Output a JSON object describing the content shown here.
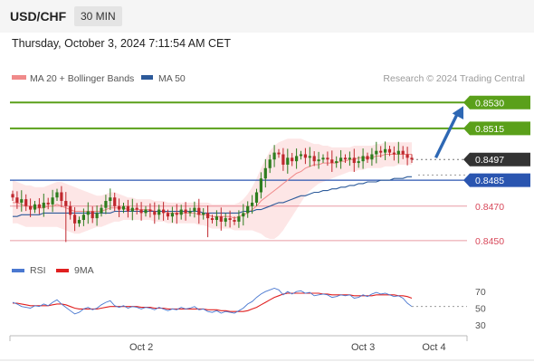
{
  "header": {
    "symbol": "USD/CHF",
    "timeframe": "30 MIN",
    "datetime": "Thursday, October 3, 2024 7:11:54 AM CET"
  },
  "legend": {
    "items": [
      {
        "label": "MA 20 + Bollinger Bands",
        "color": "#f08a8a"
      },
      {
        "label": "MA 50",
        "color": "#2c5a9a"
      }
    ],
    "credit": "Research © 2024 Trading Central"
  },
  "colors": {
    "resistance": "#5aa01a",
    "support": "#d8485a",
    "pivot": "#2a55b0",
    "current": "#333333",
    "bull": "#2e7d1e",
    "bear": "#c0282e",
    "band_fill": "#fde3e3",
    "ma20": "#f08a8a",
    "ma50": "#2c5a9a",
    "rsi": "#4a78d0",
    "rsi_ma": "#e02020",
    "arrow": "#2e68b4"
  },
  "chart_data": [
    {
      "type": "candlestick",
      "ylim": [
        0.844,
        0.8538
      ],
      "levels": [
        {
          "value": 0.853,
          "label": "0.8530",
          "kind": "resistance"
        },
        {
          "value": 0.8515,
          "label": "0.8515",
          "kind": "resistance"
        },
        {
          "value": 0.8497,
          "label": "0.8497",
          "kind": "current"
        },
        {
          "value": 0.8485,
          "label": "0.8485",
          "kind": "pivot"
        },
        {
          "value": 0.847,
          "label": "0.8470",
          "kind": "support"
        },
        {
          "value": 0.845,
          "label": "0.8450",
          "kind": "support"
        }
      ],
      "x_ticks": [
        {
          "label": "Oct 2",
          "index": 29
        },
        {
          "label": "Oct 3",
          "index": 79
        },
        {
          "label": "Oct 4",
          "index": 95
        }
      ],
      "arrow": {
        "from_index": 95,
        "from_value": 0.8497,
        "to_value": 0.853
      },
      "close": [
        0.8475,
        0.8472,
        0.8474,
        0.847,
        0.8468,
        0.8471,
        0.8469,
        0.8472,
        0.8471,
        0.8475,
        0.8478,
        0.8473,
        0.847,
        0.8465,
        0.846,
        0.8462,
        0.8465,
        0.8467,
        0.8463,
        0.8466,
        0.8469,
        0.8473,
        0.8475,
        0.847,
        0.8468,
        0.847,
        0.8467,
        0.8469,
        0.8468,
        0.8466,
        0.8468,
        0.8467,
        0.8465,
        0.8468,
        0.8466,
        0.8464,
        0.8466,
        0.8465,
        0.8468,
        0.8466,
        0.8467,
        0.8469,
        0.8465,
        0.8466,
        0.8463,
        0.8462,
        0.8464,
        0.8461,
        0.8463,
        0.8462,
        0.8461,
        0.8464,
        0.8466,
        0.847,
        0.8472,
        0.8478,
        0.8486,
        0.8492,
        0.8497,
        0.8501,
        0.85,
        0.8494,
        0.8498,
        0.8496,
        0.8499,
        0.85,
        0.8498,
        0.8499,
        0.8496,
        0.8497,
        0.8498,
        0.8497,
        0.8495,
        0.8496,
        0.8498,
        0.8497,
        0.8498,
        0.8495,
        0.8496,
        0.8499,
        0.8497,
        0.85,
        0.8502,
        0.8501,
        0.8503,
        0.8501,
        0.85,
        0.8502,
        0.85,
        0.8498,
        0.8497
      ],
      "bollinger_upper": [
        0.8485,
        0.8484,
        0.8483,
        0.8482,
        0.8482,
        0.8481,
        0.8481,
        0.8481,
        0.8482,
        0.8483,
        0.8484,
        0.8484,
        0.8483,
        0.8482,
        0.8481,
        0.848,
        0.8479,
        0.8478,
        0.8477,
        0.8476,
        0.8476,
        0.8477,
        0.8478,
        0.8478,
        0.8477,
        0.8476,
        0.8475,
        0.8475,
        0.8474,
        0.8474,
        0.8474,
        0.8474,
        0.8473,
        0.8473,
        0.8473,
        0.8472,
        0.8472,
        0.8472,
        0.8472,
        0.8472,
        0.8472,
        0.8472,
        0.8472,
        0.8472,
        0.8472,
        0.8471,
        0.8471,
        0.8471,
        0.8471,
        0.8471,
        0.8471,
        0.8472,
        0.8474,
        0.8477,
        0.8481,
        0.8486,
        0.8492,
        0.8497,
        0.8502,
        0.8505,
        0.8507,
        0.8508,
        0.8509,
        0.8509,
        0.8509,
        0.8509,
        0.8508,
        0.8507,
        0.8506,
        0.8506,
        0.8505,
        0.8505,
        0.8504,
        0.8504,
        0.8504,
        0.8504,
        0.8504,
        0.8505,
        0.8505,
        0.8505,
        0.8505,
        0.8505,
        0.8506,
        0.8506,
        0.8507,
        0.8507,
        0.8507,
        0.8507,
        0.8507,
        0.8507,
        0.8507
      ],
      "bollinger_lower": [
        0.846,
        0.846,
        0.8459,
        0.8458,
        0.8458,
        0.8458,
        0.8458,
        0.8458,
        0.8458,
        0.8458,
        0.8458,
        0.8457,
        0.8456,
        0.8455,
        0.8454,
        0.8454,
        0.8455,
        0.8456,
        0.8457,
        0.8458,
        0.8458,
        0.8459,
        0.846,
        0.8461,
        0.8461,
        0.8462,
        0.8462,
        0.8462,
        0.8462,
        0.8462,
        0.8462,
        0.8462,
        0.8461,
        0.8461,
        0.8461,
        0.846,
        0.846,
        0.846,
        0.846,
        0.846,
        0.846,
        0.846,
        0.8459,
        0.8459,
        0.8458,
        0.8457,
        0.8457,
        0.8457,
        0.8457,
        0.8457,
        0.8456,
        0.8456,
        0.8456,
        0.8456,
        0.8456,
        0.8455,
        0.8454,
        0.8452,
        0.8451,
        0.8451,
        0.8453,
        0.8456,
        0.846,
        0.8464,
        0.8468,
        0.8472,
        0.8476,
        0.8479,
        0.8481,
        0.8483,
        0.8484,
        0.8485,
        0.8486,
        0.8487,
        0.8488,
        0.8489,
        0.849,
        0.849,
        0.8491,
        0.8491,
        0.8492,
        0.8492,
        0.8492,
        0.8492,
        0.8493,
        0.8493,
        0.8493,
        0.8494,
        0.8494,
        0.8494,
        0.8494
      ],
      "ma20": [
        0.8472,
        0.8472,
        0.8471,
        0.847,
        0.847,
        0.8469,
        0.8469,
        0.8469,
        0.847,
        0.847,
        0.8471,
        0.847,
        0.8469,
        0.8468,
        0.8467,
        0.8467,
        0.8467,
        0.8467,
        0.8467,
        0.8467,
        0.8467,
        0.8468,
        0.8469,
        0.8469,
        0.8469,
        0.8469,
        0.8468,
        0.8468,
        0.8468,
        0.8468,
        0.8468,
        0.8468,
        0.8467,
        0.8467,
        0.8467,
        0.8466,
        0.8466,
        0.8466,
        0.8466,
        0.8466,
        0.8466,
        0.8466,
        0.8465,
        0.8465,
        0.8465,
        0.8464,
        0.8464,
        0.8464,
        0.8464,
        0.8464,
        0.8463,
        0.8464,
        0.8465,
        0.8466,
        0.8468,
        0.847,
        0.8473,
        0.8475,
        0.8477,
        0.8479,
        0.8481,
        0.8483,
        0.8485,
        0.8487,
        0.8489,
        0.849,
        0.8492,
        0.8493,
        0.8494,
        0.8494,
        0.8495,
        0.8495,
        0.8495,
        0.8495,
        0.8496,
        0.8496,
        0.8497,
        0.8497,
        0.8498,
        0.8498,
        0.8498,
        0.8498,
        0.8499,
        0.8499,
        0.85,
        0.85,
        0.85,
        0.85,
        0.85,
        0.85,
        0.85
      ],
      "ma50": [
        0.8464,
        0.8464,
        0.8465,
        0.8465,
        0.8465,
        0.8465,
        0.8465,
        0.8466,
        0.8466,
        0.8466,
        0.8466,
        0.8466,
        0.8466,
        0.8466,
        0.8466,
        0.8466,
        0.8466,
        0.8466,
        0.8466,
        0.8466,
        0.8466,
        0.8466,
        0.8466,
        0.8467,
        0.8467,
        0.8467,
        0.8467,
        0.8467,
        0.8467,
        0.8467,
        0.8467,
        0.8467,
        0.8467,
        0.8467,
        0.8467,
        0.8467,
        0.8467,
        0.8467,
        0.8467,
        0.8467,
        0.8467,
        0.8467,
        0.8467,
        0.8466,
        0.8466,
        0.8466,
        0.8466,
        0.8466,
        0.8466,
        0.8466,
        0.8466,
        0.8466,
        0.8467,
        0.8467,
        0.8467,
        0.8468,
        0.8468,
        0.8469,
        0.847,
        0.8471,
        0.8472,
        0.8472,
        0.8473,
        0.8474,
        0.8475,
        0.8476,
        0.8476,
        0.8477,
        0.8478,
        0.8478,
        0.8479,
        0.8479,
        0.848,
        0.848,
        0.8481,
        0.8481,
        0.8482,
        0.8482,
        0.8483,
        0.8483,
        0.8484,
        0.8484,
        0.8484,
        0.8485,
        0.8485,
        0.8485,
        0.8486,
        0.8486,
        0.8486,
        0.8487,
        0.8487
      ]
    },
    {
      "type": "line",
      "legend": [
        {
          "label": "RSI",
          "color": "#4a78d0"
        },
        {
          "label": "9MA",
          "color": "#e02020"
        }
      ],
      "ylim": [
        20,
        80
      ],
      "y_ticks": [
        70,
        50,
        30
      ],
      "rsi": [
        57,
        55,
        52,
        51,
        50,
        53,
        52,
        55,
        53,
        57,
        60,
        55,
        51,
        47,
        43,
        45,
        49,
        51,
        48,
        50,
        54,
        57,
        59,
        53,
        51,
        53,
        50,
        52,
        51,
        49,
        51,
        50,
        48,
        51,
        49,
        47,
        49,
        48,
        51,
        49,
        50,
        52,
        48,
        49,
        46,
        45,
        47,
        44,
        46,
        45,
        44,
        47,
        50,
        55,
        58,
        63,
        67,
        70,
        72,
        74,
        72,
        66,
        70,
        67,
        70,
        71,
        68,
        69,
        65,
        66,
        67,
        66,
        63,
        64,
        66,
        65,
        66,
        62,
        63,
        66,
        64,
        67,
        69,
        67,
        68,
        66,
        64,
        65,
        62,
        56,
        52
      ],
      "rsi_ma": [
        56,
        56,
        55,
        54,
        53,
        53,
        53,
        53,
        53,
        54,
        55,
        55,
        54,
        52,
        50,
        49,
        49,
        49,
        49,
        49,
        50,
        51,
        52,
        52,
        52,
        52,
        52,
        52,
        52,
        51,
        51,
        51,
        50,
        50,
        50,
        49,
        49,
        49,
        49,
        49,
        49,
        49,
        49,
        49,
        48,
        48,
        48,
        47,
        47,
        46,
        46,
        46,
        46,
        47,
        49,
        51,
        54,
        57,
        60,
        63,
        65,
        67,
        68,
        68,
        68,
        68,
        68,
        68,
        68,
        68,
        67,
        67,
        66,
        66,
        66,
        66,
        66,
        65,
        65,
        65,
        65,
        65,
        66,
        66,
        66,
        66,
        66,
        65,
        65,
        64,
        62
      ]
    }
  ]
}
